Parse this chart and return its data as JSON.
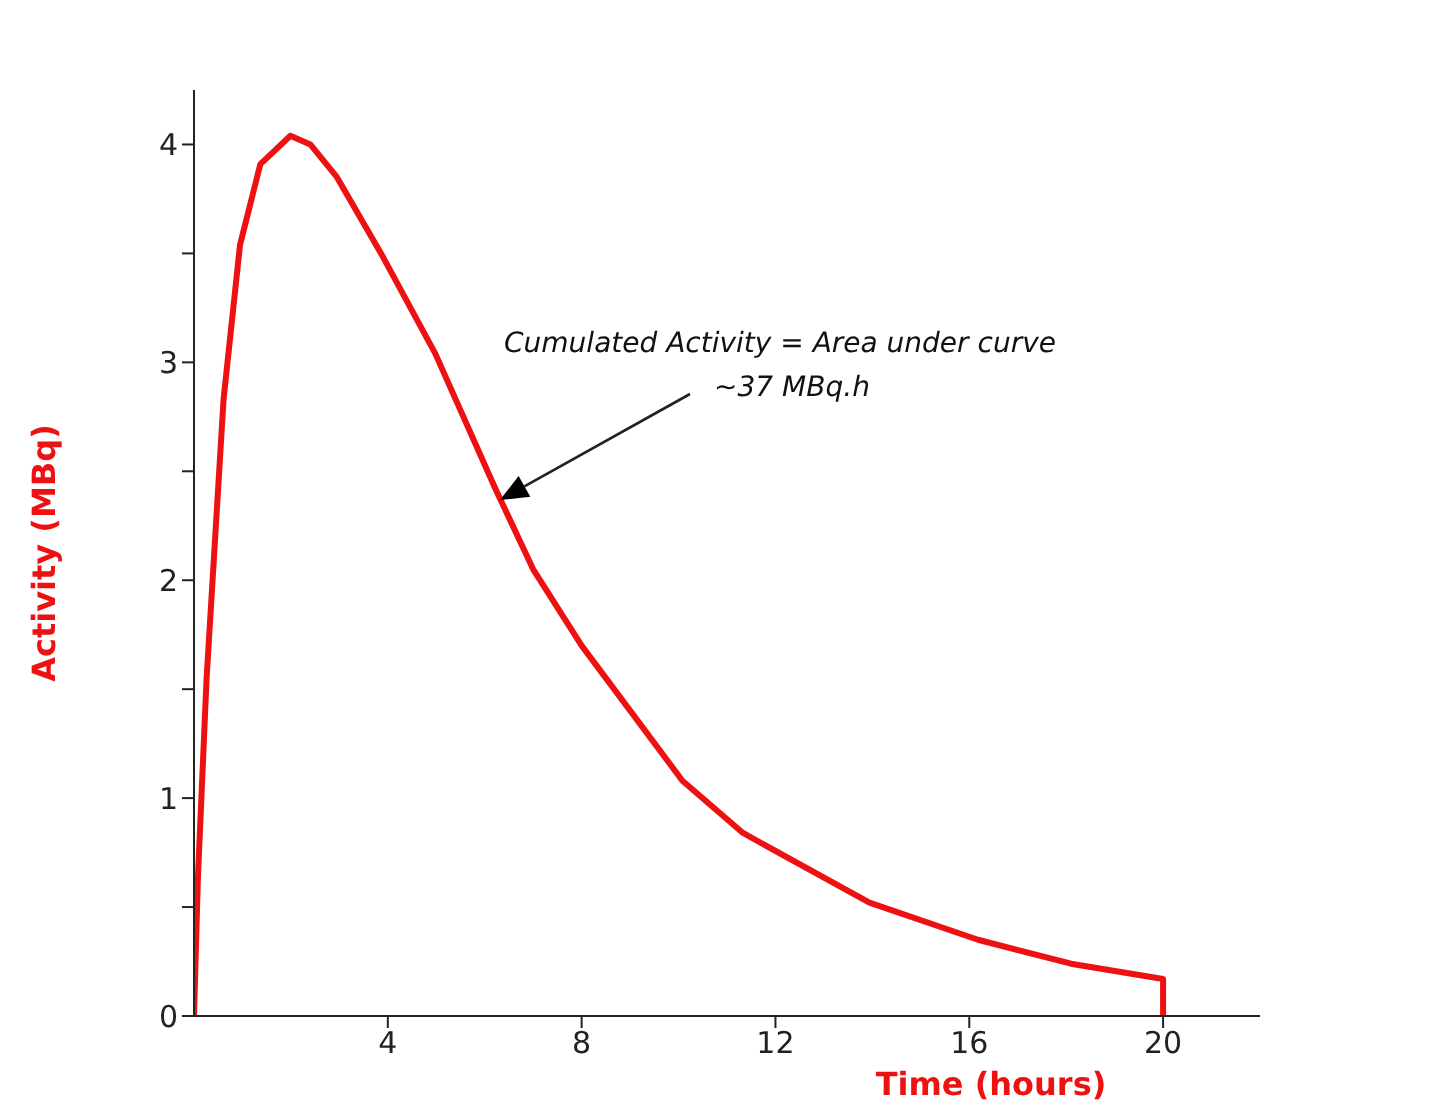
{
  "chart_data": {
    "type": "line",
    "xlabel": "Time (hours)",
    "ylabel": "Activity (MBq)",
    "x": [
      0,
      0.08,
      0.26,
      0.61,
      0.95,
      1.37,
      1.99,
      2.4,
      2.95,
      3.86,
      4.98,
      6.22,
      7,
      8,
      10.08,
      11.33,
      13.94,
      16.18,
      18.1,
      20,
      20
    ],
    "series": [
      {
        "color": "#ee1111",
        "values": [
          0,
          0.63,
          1.55,
          2.83,
          3.54,
          3.91,
          4.04,
          4.0,
          3.85,
          3.5,
          3.04,
          2.42,
          2.05,
          1.7,
          1.08,
          0.84,
          0.52,
          0.35,
          0.24,
          0.17,
          0
        ]
      }
    ],
    "xlim": [
      0,
      22
    ],
    "xticks": [
      4,
      8,
      12,
      16,
      20
    ],
    "ylim": [
      0,
      4.25
    ],
    "yticks": [
      0,
      {
        "value": 0.5,
        "label": null
      },
      1,
      {
        "value": 1.5,
        "label": null
      },
      2,
      {
        "value": 2.5,
        "label": null
      },
      3,
      {
        "value": 3.5,
        "label": null
      },
      4
    ],
    "annotations": [
      "Cumulated Activity = Area under curve\n~37 MBq.h"
    ],
    "grid": false,
    "legend": false
  }
}
